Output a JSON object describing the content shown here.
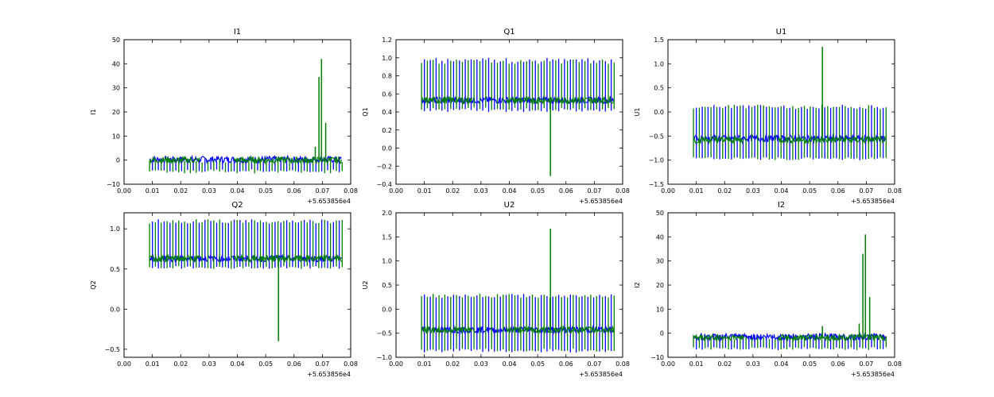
{
  "chart_data": [
    {
      "type": "line",
      "title": "I1",
      "ylabel": "I1",
      "xlabel": "",
      "x_offset_label": "+5.653856e4",
      "xlim": [
        0.0,
        0.08
      ],
      "ylim": [
        -10,
        50
      ],
      "xticks": [
        "0.00",
        "0.01",
        "0.02",
        "0.03",
        "0.04",
        "0.05",
        "0.06",
        "0.07",
        "0.08"
      ],
      "yticks": [
        "−10",
        "0",
        "10",
        "20",
        "30",
        "40",
        "50"
      ],
      "ytick_values": [
        -10,
        0,
        10,
        20,
        30,
        40,
        50
      ],
      "series": [
        {
          "name": "blue",
          "color": "#0000ff",
          "baseline": 0.3,
          "spike_up": 0.8,
          "spike_down": -5
        },
        {
          "name": "green",
          "color": "#007f00",
          "baseline": 0.0,
          "spike_up": 0.8,
          "spike_down": -5.5
        }
      ],
      "extra_spikes": [
        {
          "x": 0.0545,
          "y": 1.5
        },
        {
          "x": 0.0675,
          "y": 5.5
        },
        {
          "x": 0.0688,
          "y": 34.5
        },
        {
          "x": 0.0697,
          "y": 42
        },
        {
          "x": 0.0712,
          "y": 15.5
        }
      ]
    },
    {
      "type": "line",
      "title": "Q1",
      "ylabel": "Q1",
      "xlabel": "",
      "x_offset_label": "+5.653856e4",
      "xlim": [
        0.0,
        0.08
      ],
      "ylim": [
        -0.4,
        1.2
      ],
      "xticks": [
        "0.00",
        "0.01",
        "0.02",
        "0.03",
        "0.04",
        "0.05",
        "0.06",
        "0.07",
        "0.08"
      ],
      "yticks": [
        "−0.4",
        "−0.2",
        "0.0",
        "0.2",
        "0.4",
        "0.6",
        "0.8",
        "1.0",
        "1.2"
      ],
      "ytick_values": [
        -0.4,
        -0.2,
        0.0,
        0.2,
        0.4,
        0.6,
        0.8,
        1.0,
        1.2
      ],
      "series": [
        {
          "name": "blue",
          "color": "#0000ff",
          "baseline": 0.53,
          "spike_up": 1.0,
          "spike_down": 0.4
        },
        {
          "name": "green",
          "color": "#007f00",
          "baseline": 0.53,
          "spike_up": 0.98,
          "spike_down": 0.42
        }
      ],
      "extra_spikes": [
        {
          "x": 0.0545,
          "y": -0.31
        }
      ]
    },
    {
      "type": "line",
      "title": "U1",
      "ylabel": "U1",
      "xlabel": "",
      "x_offset_label": "+5.653856e4",
      "xlim": [
        0.0,
        0.08
      ],
      "ylim": [
        -1.5,
        1.5
      ],
      "xticks": [
        "0.00",
        "0.01",
        "0.02",
        "0.03",
        "0.04",
        "0.05",
        "0.06",
        "0.07",
        "0.08"
      ],
      "yticks": [
        "−1.5",
        "−1.0",
        "−0.5",
        "0.0",
        "0.5",
        "1.0",
        "1.5"
      ],
      "ytick_values": [
        -1.5,
        -1.0,
        -0.5,
        0.0,
        0.5,
        1.0,
        1.5
      ],
      "series": [
        {
          "name": "blue",
          "color": "#0000ff",
          "baseline": -0.55,
          "spike_up": 0.15,
          "spike_down": -1.0
        },
        {
          "name": "green",
          "color": "#007f00",
          "baseline": -0.58,
          "spike_up": 0.15,
          "spike_down": -1.0
        }
      ],
      "extra_spikes": [
        {
          "x": 0.0545,
          "y": 1.35
        }
      ]
    },
    {
      "type": "line",
      "title": "Q2",
      "ylabel": "Q2",
      "xlabel": "",
      "x_offset_label": "+5.653856e4",
      "xlim": [
        0.0,
        0.08
      ],
      "ylim": [
        -0.6,
        1.2
      ],
      "xticks": [
        "0.00",
        "0.01",
        "0.02",
        "0.03",
        "0.04",
        "0.05",
        "0.06",
        "0.07",
        "0.08"
      ],
      "yticks": [
        "−0.5",
        "0.0",
        "0.5",
        "1.0"
      ],
      "ytick_values": [
        -0.5,
        0.0,
        0.5,
        1.0
      ],
      "series": [
        {
          "name": "blue",
          "color": "#0000ff",
          "baseline": 0.63,
          "spike_up": 1.12,
          "spike_down": 0.5
        },
        {
          "name": "green",
          "color": "#007f00",
          "baseline": 0.63,
          "spike_up": 1.12,
          "spike_down": 0.5
        }
      ],
      "extra_spikes": [
        {
          "x": 0.0545,
          "y": -0.4
        }
      ]
    },
    {
      "type": "line",
      "title": "U2",
      "ylabel": "U2",
      "xlabel": "",
      "x_offset_label": "+5.653856e4",
      "xlim": [
        0.0,
        0.08
      ],
      "ylim": [
        -1.0,
        2.0
      ],
      "xticks": [
        "0.00",
        "0.01",
        "0.02",
        "0.03",
        "0.04",
        "0.05",
        "0.06",
        "0.07",
        "0.08"
      ],
      "yticks": [
        "−1.0",
        "−0.5",
        "0.0",
        "0.5",
        "1.0",
        "1.5",
        "2.0"
      ],
      "ytick_values": [
        -1.0,
        -0.5,
        0.0,
        0.5,
        1.0,
        1.5,
        2.0
      ],
      "series": [
        {
          "name": "blue",
          "color": "#0000ff",
          "baseline": -0.43,
          "spike_up": 0.32,
          "spike_down": -0.9
        },
        {
          "name": "green",
          "color": "#007f00",
          "baseline": -0.43,
          "spike_up": 0.32,
          "spike_down": -0.88
        }
      ],
      "extra_spikes": [
        {
          "x": 0.0545,
          "y": 1.67
        }
      ]
    },
    {
      "type": "line",
      "title": "I2",
      "ylabel": "I2",
      "xlabel": "",
      "x_offset_label": "+5.653856e4",
      "xlim": [
        0.0,
        0.08
      ],
      "ylim": [
        -10,
        50
      ],
      "xticks": [
        "0.00",
        "0.01",
        "0.02",
        "0.03",
        "0.04",
        "0.05",
        "0.06",
        "0.07",
        "0.08"
      ],
      "yticks": [
        "−10",
        "0",
        "10",
        "20",
        "30",
        "40",
        "50"
      ],
      "ytick_values": [
        -10,
        0,
        10,
        20,
        30,
        40,
        50
      ],
      "series": [
        {
          "name": "blue",
          "color": "#0000ff",
          "baseline": -1.5,
          "spike_up": -0.5,
          "spike_down": -7
        },
        {
          "name": "green",
          "color": "#007f00",
          "baseline": -1.8,
          "spike_up": -0.8,
          "spike_down": -7
        }
      ],
      "extra_spikes": [
        {
          "x": 0.0545,
          "y": 3
        },
        {
          "x": 0.0675,
          "y": 4
        },
        {
          "x": 0.0688,
          "y": 33
        },
        {
          "x": 0.0697,
          "y": 41
        },
        {
          "x": 0.0712,
          "y": 15
        }
      ]
    }
  ],
  "colors": {
    "blue": "#0000ff",
    "green": "#007f00",
    "axis": "#000000",
    "background": "#ffffff"
  }
}
